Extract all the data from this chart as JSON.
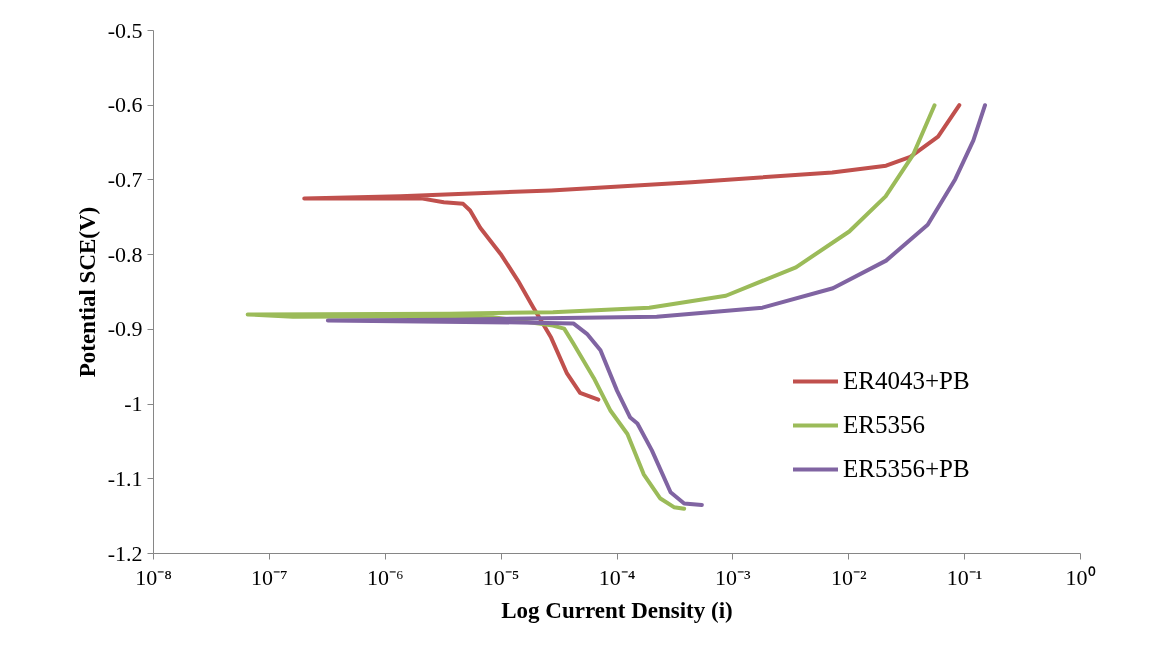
{
  "chart_data": {
    "type": "line",
    "xlabel": "Log Current Density (i)",
    "ylabel": "Potential SCE(V)",
    "log": "x",
    "xlim": [
      1e-08,
      1
    ],
    "ylim": [
      -1.2,
      -0.5
    ],
    "legend": "right",
    "grid": false,
    "line_style": "solid",
    "xticks": [
      {
        "value": 1e-08,
        "label": "10⁻⁸"
      },
      {
        "value": 1e-07,
        "label": "10⁻⁷"
      },
      {
        "value": 1e-06,
        "label": "10⁻⁶"
      },
      {
        "value": 1e-05,
        "label": "10⁻⁵"
      },
      {
        "value": 0.0001,
        "label": "10⁻⁴"
      },
      {
        "value": 0.001,
        "label": "10⁻³"
      },
      {
        "value": 0.01,
        "label": "10⁻²"
      },
      {
        "value": 0.1,
        "label": "10⁻¹"
      },
      {
        "value": 1,
        "label": "10⁰"
      }
    ],
    "yticks": [
      -0.5,
      -0.6,
      -0.7,
      -0.8,
      -0.9,
      -1,
      -1.1,
      -1.2
    ],
    "series": [
      {
        "name": "ER4043+PB",
        "color": "#c0504d",
        "x": [
          6.9e-05,
          4.8e-05,
          3.7e-05,
          2.7e-05,
          1.9e-05,
          1.4e-05,
          9.9e-06,
          6.6e-06,
          5.4e-06,
          4.7e-06,
          3.2e-06,
          2.1e-06,
          2e-07,
          1.35e-06,
          2.7e-05,
          0.00044,
          0.0072,
          0.021,
          0.034,
          0.059,
          0.09
        ],
        "values": [
          -0.994,
          -0.985,
          -0.959,
          -0.911,
          -0.871,
          -0.835,
          -0.799,
          -0.764,
          -0.741,
          -0.732,
          -0.73,
          -0.725,
          -0.725,
          -0.722,
          -0.714,
          -0.703,
          -0.69,
          -0.681,
          -0.669,
          -0.642,
          -0.6
        ]
      },
      {
        "name": "ER5356",
        "color": "#9bbb59",
        "x": [
          0.00038,
          0.00031,
          0.000235,
          0.00017,
          0.000123,
          8.8e-05,
          6.3e-05,
          4.2e-05,
          3.5e-05,
          2.8e-05,
          7.1e-06,
          1.6e-07,
          6.5e-08,
          3.6e-06,
          2.8e-05,
          0.00019,
          0.00087,
          0.0035,
          0.0101,
          0.0208,
          0.036,
          0.055
        ],
        "values": [
          -1.14,
          -1.138,
          -1.126,
          -1.094,
          -1.04,
          -1.009,
          -0.965,
          -0.919,
          -0.899,
          -0.895,
          -0.882,
          -0.883,
          -0.88,
          -0.879,
          -0.877,
          -0.871,
          -0.855,
          -0.817,
          -0.769,
          -0.722,
          -0.666,
          -0.6
        ]
      },
      {
        "name": "ER5356+PB",
        "color": "#8064a2",
        "x": [
          0.00054,
          0.00038,
          0.00029,
          0.0002,
          0.00015,
          0.00013,
          0.0001,
          7.2e-05,
          5.5e-05,
          4.2e-05,
          1.9e-05,
          3.2e-07,
          4e-06,
          0.00022,
          0.0018,
          0.0073,
          0.021,
          0.048,
          0.083,
          0.119,
          0.15
        ],
        "values": [
          -1.135,
          -1.133,
          -1.118,
          -1.062,
          -1.026,
          -1.018,
          -0.982,
          -0.928,
          -0.906,
          -0.892,
          -0.891,
          -0.888,
          -0.887,
          -0.883,
          -0.871,
          -0.845,
          -0.808,
          -0.76,
          -0.699,
          -0.647,
          -0.6
        ]
      }
    ]
  }
}
